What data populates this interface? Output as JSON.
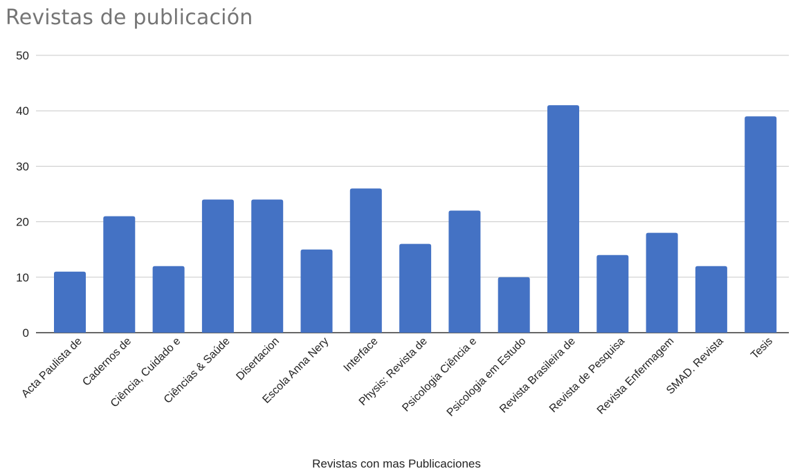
{
  "chart_data": {
    "type": "bar",
    "title": "Revistas de publicación",
    "xlabel": "Revistas con mas Publicaciones",
    "ylabel": "",
    "ylim": [
      0,
      50
    ],
    "yticks": [
      0,
      10,
      20,
      30,
      40,
      50
    ],
    "grid": true,
    "legend": "none",
    "bar_color": "#4472C4",
    "categories": [
      "Acta Paulista de",
      "Cadernos de",
      "Ciência, Cuidado e",
      "Ciências & Saúde",
      "Disertacion",
      "Escola Anna Nery",
      "Interface",
      "Physis: Revista de",
      "Psicologia Ciência e",
      "Psicologia em Estudo",
      "Revista Brasileira de",
      "Revista de Pesquisa",
      "Revista Enfermagem",
      "SMAD. Revista",
      "Tesis"
    ],
    "values": [
      11,
      21,
      12,
      24,
      24,
      15,
      26,
      16,
      22,
      10,
      41,
      14,
      18,
      12,
      39
    ]
  }
}
